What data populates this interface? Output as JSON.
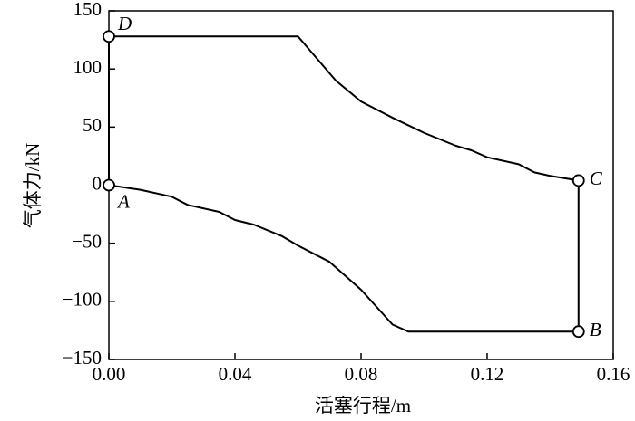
{
  "chart_data": {
    "type": "line",
    "x_label": "活塞行程/m",
    "y_label": "气体力/kN",
    "xlim": [
      0,
      0.16
    ],
    "xticks": [
      {
        "value": 0,
        "label": "0.00"
      },
      0.04,
      0.08,
      0.12,
      0.16
    ],
    "ylim": [
      -150,
      150
    ],
    "yticks": [
      {
        "value": -150,
        "label": "−150"
      },
      {
        "value": -100,
        "label": "−100"
      },
      {
        "value": -50,
        "label": "−50"
      },
      0,
      50,
      100,
      150
    ],
    "color": "#000000",
    "x": [
      0,
      0.01,
      0.02,
      0.025,
      0.035,
      0.04,
      0.046,
      0.055,
      0.06,
      0.07,
      0.08,
      0.09,
      0.095,
      0.149,
      0.149,
      0.14,
      0.135,
      0.13,
      0.12,
      0.115,
      0.11,
      0.1,
      0.09,
      0.08,
      0.072,
      0.06,
      0,
      0
    ],
    "values": [
      0,
      -4,
      -10,
      -17,
      -23,
      -30,
      -34,
      -44,
      -52,
      -66,
      -90,
      -120,
      -126,
      -126,
      4,
      8,
      11,
      18,
      24,
      30,
      34,
      45,
      58,
      72,
      90,
      128,
      128,
      0
    ],
    "annotations": [
      {
        "text": "A",
        "x": 0,
        "y": 0
      },
      {
        "text": "B",
        "x": 0.149,
        "y": -126
      },
      {
        "text": "C",
        "x": 0.149,
        "y": 4
      },
      {
        "text": "D",
        "x": 0,
        "y": 128
      }
    ]
  }
}
